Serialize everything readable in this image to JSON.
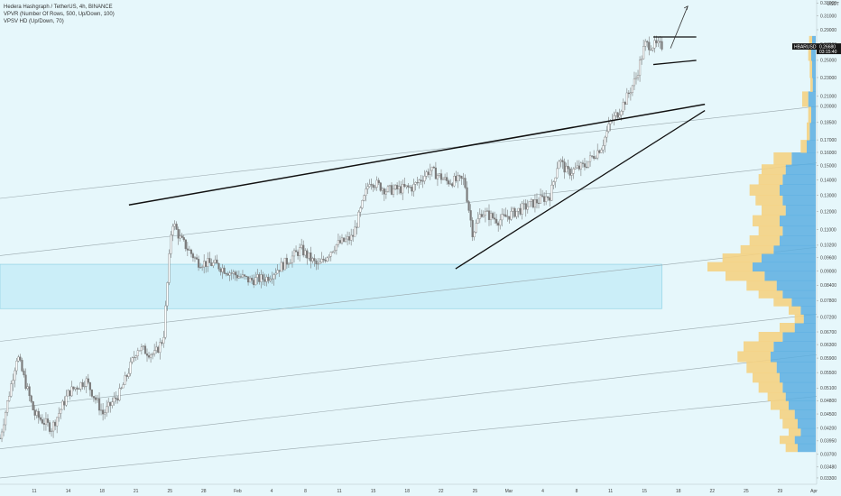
{
  "header": {
    "symbol_line": "Hedera Hashgraph / TetherUS, 4h, BINANCE",
    "indicator_1": "VPVR (Number Of Rows, 500, Up/Down, 100)",
    "indicator_2": "VPSV HD (Up/Down, 70)"
  },
  "price_panel": {
    "currency": "USDT",
    "ticker_badge": "HBARUSDT",
    "current_price": "0.26680",
    "countdown": "03:15:40"
  },
  "colors": {
    "background": "#e6f7fb",
    "candle": "#7a7a7a",
    "trendline": "#111111",
    "channel": "#9aa8ad",
    "zone_fill": "#c9eef8",
    "zone_border": "#7ccbe0",
    "volume_up": "#5aaee0",
    "volume_down": "#f4d283"
  },
  "chart_data": {
    "type": "candlestick",
    "symbol": "HBARUSDT",
    "timeframe": "4h",
    "exchange": "BINANCE",
    "y_scale": "log",
    "ylim": [
      0.032,
      0.335
    ],
    "y_ticks": [
      "0.33000",
      "0.31000",
      "0.29000",
      "0.27000",
      "0.25000",
      "0.23000",
      "0.21000",
      "0.20000",
      "0.18500",
      "0.17000",
      "0.16000",
      "0.15000",
      "0.14000",
      "0.13000",
      "0.12000",
      "0.11000",
      "0.10200",
      "0.09600",
      "0.09000",
      "0.08400",
      "0.07800",
      "0.07200",
      "0.06700",
      "0.06300",
      "0.05900",
      "0.05500",
      "0.05100",
      "0.04800",
      "0.04500",
      "0.04200",
      "0.03950",
      "0.03700",
      "0.03480",
      "0.03300"
    ],
    "x_ticks": [
      "11",
      "14",
      "18",
      "21",
      "25",
      "28",
      "Feb",
      "4",
      "8",
      "11",
      "15",
      "18",
      "22",
      "25",
      "Mar",
      "4",
      "8",
      "11",
      "15",
      "18",
      "22",
      "25",
      "29",
      "Apr"
    ],
    "path": [
      [
        0,
        0.04
      ],
      [
        2,
        0.06
      ],
      [
        4,
        0.045
      ],
      [
        6,
        0.042
      ],
      [
        8,
        0.05
      ],
      [
        10,
        0.053
      ],
      [
        12,
        0.045
      ],
      [
        14,
        0.05
      ],
      [
        16,
        0.062
      ],
      [
        18,
        0.06
      ],
      [
        19,
        0.065
      ],
      [
        20,
        0.115
      ],
      [
        21,
        0.105
      ],
      [
        23,
        0.094
      ],
      [
        25,
        0.093
      ],
      [
        27,
        0.089
      ],
      [
        29,
        0.086
      ],
      [
        31,
        0.087
      ],
      [
        33,
        0.093
      ],
      [
        35,
        0.1
      ],
      [
        37,
        0.092
      ],
      [
        39,
        0.102
      ],
      [
        41,
        0.106
      ],
      [
        43,
        0.14
      ],
      [
        45,
        0.133
      ],
      [
        48,
        0.135
      ],
      [
        50,
        0.147
      ],
      [
        52,
        0.139
      ],
      [
        54,
        0.14
      ],
      [
        55,
        0.108
      ],
      [
        56,
        0.12
      ],
      [
        58,
        0.115
      ],
      [
        60,
        0.12
      ],
      [
        62,
        0.125
      ],
      [
        64,
        0.13
      ],
      [
        65,
        0.155
      ],
      [
        66,
        0.145
      ],
      [
        68,
        0.15
      ],
      [
        70,
        0.165
      ],
      [
        71,
        0.185
      ],
      [
        72,
        0.195
      ],
      [
        73,
        0.21
      ],
      [
        74,
        0.23
      ],
      [
        75,
        0.27
      ],
      [
        77,
        0.268
      ]
    ],
    "annotations": {
      "ascending_resistance": [
        [
          15,
          0.124
        ],
        [
          82,
          0.202
        ]
      ],
      "ascending_support": [
        [
          53,
          0.091
        ],
        [
          82,
          0.196
        ]
      ],
      "flag_top": [
        [
          76,
          0.28
        ],
        [
          81,
          0.28
        ]
      ],
      "flag_bottom": [
        [
          76,
          0.245
        ],
        [
          81,
          0.25
        ]
      ],
      "projection_arrow": [
        [
          78,
          0.265
        ],
        [
          80,
          0.325
        ]
      ],
      "demand_zone": {
        "x": [
          0,
          77
        ],
        "y": [
          0.075,
          0.093
        ]
      },
      "channel_lines": [
        [
          [
            0,
            0.128
          ],
          [
            95,
            0.2
          ]
        ],
        [
          [
            0,
            0.097
          ],
          [
            95,
            0.152
          ]
        ],
        [
          [
            0,
            0.064
          ],
          [
            95,
            0.101
          ]
        ],
        [
          [
            0,
            0.046
          ],
          [
            95,
            0.073
          ]
        ],
        [
          [
            0,
            0.038
          ],
          [
            95,
            0.06
          ]
        ],
        [
          [
            0,
            0.033
          ],
          [
            95,
            0.049
          ]
        ]
      ]
    },
    "volume_profile": {
      "bins": [
        [
          0.0375,
          0.6,
          0.4
        ],
        [
          0.039,
          0.7,
          0.5
        ],
        [
          0.0405,
          0.5,
          0.4
        ],
        [
          0.042,
          0.6,
          0.5
        ],
        [
          0.044,
          0.7,
          0.5
        ],
        [
          0.046,
          0.9,
          0.6
        ],
        [
          0.048,
          1.0,
          0.6
        ],
        [
          0.05,
          1.1,
          0.8
        ],
        [
          0.0525,
          1.2,
          0.9
        ],
        [
          0.055,
          1.3,
          1.0
        ],
        [
          0.058,
          1.5,
          1.1
        ],
        [
          0.061,
          1.4,
          1.0
        ],
        [
          0.064,
          1.1,
          0.8
        ],
        [
          0.067,
          0.7,
          0.5
        ],
        [
          0.07,
          0.4,
          0.3
        ],
        [
          0.073,
          0.5,
          0.4
        ],
        [
          0.076,
          0.8,
          0.6
        ],
        [
          0.079,
          1.1,
          0.8
        ],
        [
          0.082,
          1.3,
          1.0
        ],
        [
          0.086,
          1.7,
          1.3
        ],
        [
          0.09,
          2.1,
          1.5
        ],
        [
          0.094,
          1.8,
          1.3
        ],
        [
          0.098,
          1.4,
          1.1
        ],
        [
          0.102,
          1.2,
          1.0
        ],
        [
          0.107,
          1.1,
          0.8
        ],
        [
          0.112,
          1.2,
          0.9
        ],
        [
          0.118,
          1.0,
          0.8
        ],
        [
          0.124,
          1.1,
          0.9
        ],
        [
          0.13,
          1.2,
          1.0
        ],
        [
          0.137,
          1.1,
          0.8
        ],
        [
          0.144,
          1.0,
          0.8
        ],
        [
          0.151,
          0.8,
          0.6
        ],
        [
          0.16,
          0.3,
          0.2
        ],
        [
          0.17,
          0.2,
          0.1
        ],
        [
          0.185,
          0.15,
          0.1
        ],
        [
          0.2,
          0.25,
          0.2
        ],
        [
          0.215,
          0.1,
          0.08
        ],
        [
          0.23,
          0.12,
          0.08
        ],
        [
          0.25,
          0.15,
          0.1
        ],
        [
          0.268,
          0.12,
          0.1
        ]
      ]
    }
  }
}
